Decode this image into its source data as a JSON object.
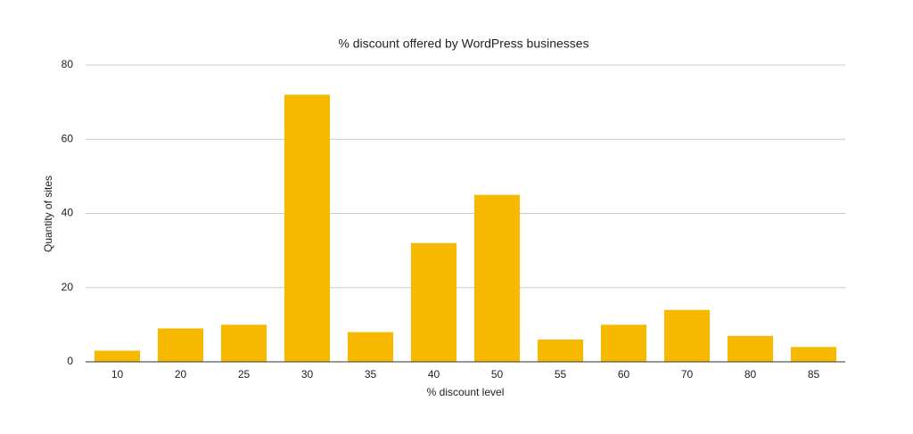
{
  "chart_data": {
    "type": "bar",
    "title": "% discount offered by WordPress businesses",
    "x_label": "% discount level",
    "y_label": "Quantity of sites",
    "categories": [
      "10",
      "20",
      "25",
      "30",
      "35",
      "40",
      "50",
      "55",
      "60",
      "70",
      "80",
      "85"
    ],
    "values": [
      3,
      9,
      10,
      72,
      8,
      32,
      45,
      6,
      10,
      14,
      7,
      4
    ],
    "color": "#f6b900",
    "ylim": [
      0,
      80
    ],
    "yticks": [
      0,
      20,
      40,
      60,
      80
    ],
    "grid": true
  }
}
